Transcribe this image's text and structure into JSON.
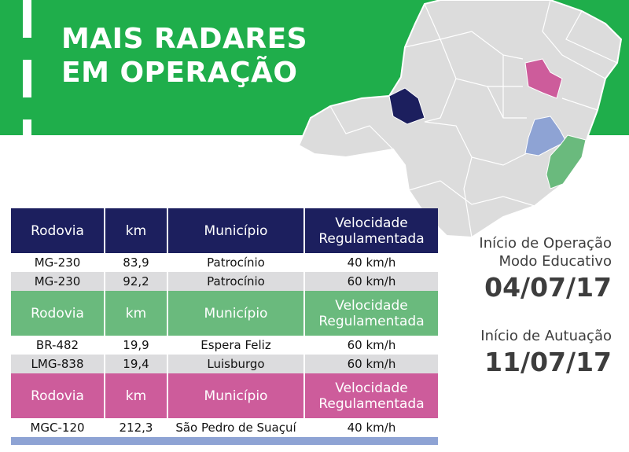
{
  "header": {
    "title_lines": [
      "MAIS RADARES",
      "EM OPERAÇÃO"
    ]
  },
  "tables": [
    {
      "header": [
        "Rodovia",
        "km",
        "Município",
        "Velocidade Regulamentada"
      ],
      "color": "#1c1f5e",
      "rows": [
        [
          "MG-230",
          "83,9",
          "Patrocínio",
          "40 km/h"
        ],
        [
          "MG-230",
          "92,2",
          "Patrocínio",
          "60 km/h"
        ]
      ]
    },
    {
      "header": [
        "Rodovia",
        "km",
        "Município",
        "Velocidade Regulamentada"
      ],
      "color": "#6aba7d",
      "rows": [
        [
          "BR-482",
          "19,9",
          "Espera Feliz",
          "60 km/h"
        ],
        [
          "LMG-838",
          "19,4",
          "Luisburgo",
          "60 km/h"
        ]
      ]
    },
    {
      "header": [
        "Rodovia",
        "km",
        "Município",
        "Velocidade Regulamentada"
      ],
      "color": "#cd5c9b",
      "rows": [
        [
          "MGC-120",
          "212,3",
          "São Pedro de Suaçuí",
          "40 km/h"
        ]
      ]
    }
  ],
  "info": [
    {
      "label_lines": [
        "Início de Operação",
        "Modo Educativo"
      ],
      "date": "04/07/17"
    },
    {
      "label_lines": [
        "Início de Autuação"
      ],
      "date": "11/07/17"
    }
  ]
}
